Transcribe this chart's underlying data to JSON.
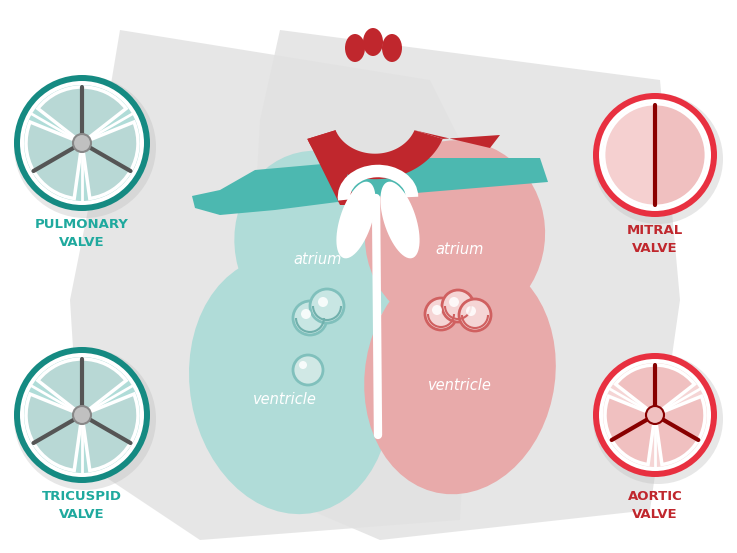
{
  "bg": "#ffffff",
  "teal": "#1fa99e",
  "teal_dark": "#158a82",
  "teal_light": "#b0dcd8",
  "teal_mid": "#4bbfb5",
  "teal_vessel": "#4cb8b0",
  "red_dark": "#c0272d",
  "red_bright": "#e83040",
  "red_mid": "#dd4444",
  "red_light": "#f0b0b0",
  "pink_light": "#e8aaaa",
  "pink_vl": "#f5d5d5",
  "pink_mid": "#e8b8b8",
  "gray_bg": "#d8d8d8",
  "gray_swoosh": "#dcdcdc",
  "white": "#ffffff",
  "gray_valve_line": "#666666",
  "gray_valve_dark": "#888888",
  "gray_hub": "#cccccc",
  "pulmonary_label": "PULMONARY\nVALVE",
  "tricuspid_label": "TRICUSPID\nVALVE",
  "mitral_label": "MITRAL\nVALVE",
  "aortic_label": "AORTIC\nVALVE",
  "teal_text": "#1fa99e",
  "red_text": "#c0272d",
  "white_text": "#ffffff"
}
